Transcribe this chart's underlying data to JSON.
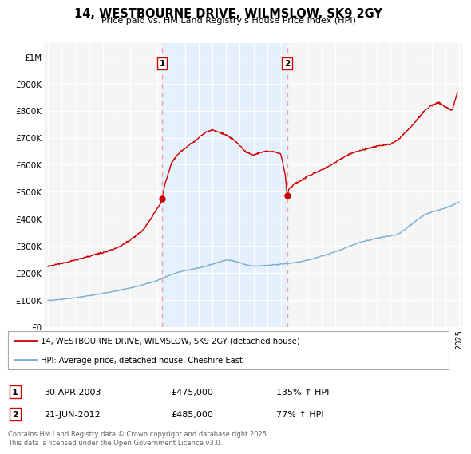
{
  "title": "14, WESTBOURNE DRIVE, WILMSLOW, SK9 2GY",
  "subtitle": "Price paid vs. HM Land Registry's House Price Index (HPI)",
  "legend_line1": "14, WESTBOURNE DRIVE, WILMSLOW, SK9 2GY (detached house)",
  "legend_line2": "HPI: Average price, detached house, Cheshire East",
  "footer": "Contains HM Land Registry data © Crown copyright and database right 2025.\nThis data is licensed under the Open Government Licence v3.0.",
  "marker1_date": "30-APR-2003",
  "marker1_price": "£475,000",
  "marker1_hpi": "135% ↑ HPI",
  "marker1_year": 2003.33,
  "marker1_val": 475000,
  "marker2_date": "21-JUN-2012",
  "marker2_price": "£485,000",
  "marker2_hpi": "77% ↑ HPI",
  "marker2_year": 2012.46,
  "marker2_val": 485000,
  "sale_color": "#cc0000",
  "hpi_color": "#7aadd4",
  "marker_vline_color": "#e8a0a0",
  "shade_color": "#ddeeff",
  "background_color": "#f5f5f5",
  "plot_bg_color": "#f5f5f5",
  "ylim_max": 1000000,
  "xmin": 1994.7,
  "xmax": 2025.3,
  "hpi_data_years": [
    1995,
    1995.5,
    1996,
    1996.5,
    1997,
    1997.5,
    1998,
    1998.5,
    1999,
    1999.5,
    2000,
    2000.5,
    2001,
    2001.5,
    2002,
    2002.5,
    2003,
    2003.5,
    2004,
    2004.5,
    2005,
    2005.5,
    2006,
    2006.5,
    2007,
    2007.5,
    2008,
    2008.5,
    2009,
    2009.5,
    2010,
    2010.5,
    2011,
    2011.5,
    2012,
    2012.5,
    2013,
    2013.5,
    2014,
    2014.5,
    2015,
    2015.5,
    2016,
    2016.5,
    2017,
    2017.5,
    2018,
    2018.5,
    2019,
    2019.5,
    2020,
    2020.5,
    2021,
    2021.5,
    2022,
    2022.5,
    2023,
    2023.5,
    2024,
    2024.5,
    2025
  ],
  "hpi_data_vals": [
    97000,
    99000,
    102000,
    105000,
    108000,
    112000,
    116000,
    120000,
    124000,
    128000,
    133000,
    138000,
    144000,
    150000,
    157000,
    164000,
    172000,
    183000,
    194000,
    202000,
    208000,
    213000,
    218000,
    225000,
    232000,
    240000,
    248000,
    245000,
    238000,
    228000,
    225000,
    226000,
    228000,
    230000,
    232000,
    235000,
    238000,
    242000,
    248000,
    255000,
    262000,
    270000,
    278000,
    288000,
    298000,
    308000,
    316000,
    322000,
    328000,
    333000,
    337000,
    342000,
    358000,
    378000,
    398000,
    415000,
    425000,
    432000,
    440000,
    450000,
    462000
  ],
  "red_data_years": [
    1995,
    1995.5,
    1996,
    1996.5,
    1997,
    1997.5,
    1998,
    1998.5,
    1999,
    1999.5,
    2000,
    2000.5,
    2001,
    2001.5,
    2002,
    2002.5,
    2003,
    2003.25,
    2003.33,
    2003.5,
    2004,
    2004.5,
    2005,
    2005.5,
    2006,
    2006.5,
    2007,
    2007.5,
    2008,
    2008.5,
    2009,
    2009.5,
    2010,
    2010.5,
    2011,
    2011.5,
    2012,
    2012.33,
    2012.46,
    2012.6,
    2013,
    2013.5,
    2014,
    2014.5,
    2015,
    2015.5,
    2016,
    2016.5,
    2017,
    2017.5,
    2018,
    2018.5,
    2019,
    2019.5,
    2020,
    2020.5,
    2021,
    2021.5,
    2022,
    2022.5,
    2023,
    2023.5,
    2024,
    2024.5,
    2024.9
  ],
  "red_data_vals": [
    225000,
    230000,
    235000,
    240000,
    248000,
    255000,
    262000,
    268000,
    275000,
    282000,
    292000,
    305000,
    322000,
    340000,
    362000,
    400000,
    440000,
    460000,
    475000,
    520000,
    605000,
    640000,
    660000,
    680000,
    700000,
    720000,
    730000,
    720000,
    710000,
    695000,
    670000,
    645000,
    635000,
    645000,
    650000,
    648000,
    640000,
    560000,
    485000,
    510000,
    530000,
    542000,
    558000,
    570000,
    582000,
    595000,
    610000,
    625000,
    638000,
    648000,
    655000,
    662000,
    668000,
    672000,
    676000,
    690000,
    715000,
    740000,
    770000,
    800000,
    820000,
    830000,
    815000,
    800000,
    870000
  ]
}
